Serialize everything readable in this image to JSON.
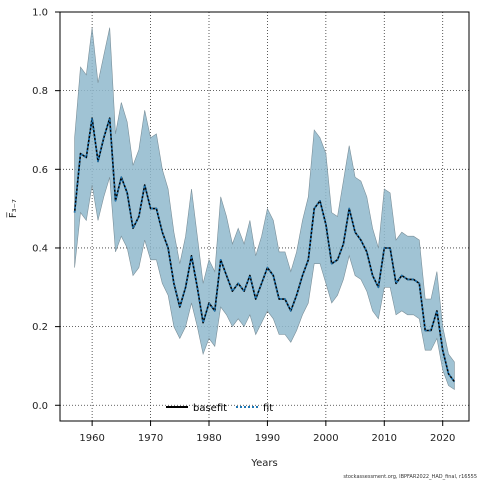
{
  "chart_data": {
    "type": "line",
    "xlabel": "Years",
    "ylabel": "F̅₃₋₇",
    "xlim": [
      1954.5,
      2024.5
    ],
    "ylim": [
      -0.04,
      1.0
    ],
    "xticks": [
      1960,
      1970,
      1980,
      1990,
      2000,
      2010,
      2020
    ],
    "yticks": [
      0.0,
      0.2,
      0.4,
      0.6,
      0.8,
      1.0
    ],
    "ytick_labels": [
      "0.0",
      "0.2",
      "0.4",
      "0.6",
      "0.8",
      "1.0"
    ],
    "grid": true,
    "legend_position": "bottom-center",
    "credit": "stockassessment.org, IBPFAR2022_HAD_final, r16555",
    "colors": {
      "band": "#8fb8cc",
      "band_edge": "#7a8f99",
      "basefit": "#000000",
      "fit": "#1f77b4"
    },
    "x": [
      1957,
      1958,
      1959,
      1960,
      1961,
      1962,
      1963,
      1964,
      1965,
      1966,
      1967,
      1968,
      1969,
      1970,
      1971,
      1972,
      1973,
      1974,
      1975,
      1976,
      1977,
      1978,
      1979,
      1980,
      1981,
      1982,
      1983,
      1984,
      1985,
      1986,
      1987,
      1988,
      1989,
      1990,
      1991,
      1992,
      1993,
      1994,
      1995,
      1996,
      1997,
      1998,
      1999,
      2000,
      2001,
      2002,
      2003,
      2004,
      2005,
      2006,
      2007,
      2008,
      2009,
      2010,
      2011,
      2012,
      2013,
      2014,
      2015,
      2016,
      2017,
      2018,
      2019,
      2020,
      2021,
      2022
    ],
    "series": [
      {
        "name": "basefit",
        "style": "solid",
        "values": [
          0.49,
          0.64,
          0.63,
          0.73,
          0.62,
          0.68,
          0.73,
          0.52,
          0.58,
          0.54,
          0.45,
          0.48,
          0.56,
          0.5,
          0.5,
          0.44,
          0.4,
          0.31,
          0.25,
          0.3,
          0.38,
          0.3,
          0.21,
          0.26,
          0.24,
          0.37,
          0.33,
          0.29,
          0.31,
          0.29,
          0.33,
          0.27,
          0.31,
          0.35,
          0.33,
          0.27,
          0.27,
          0.24,
          0.28,
          0.33,
          0.37,
          0.5,
          0.52,
          0.46,
          0.36,
          0.37,
          0.41,
          0.5,
          0.44,
          0.42,
          0.39,
          0.33,
          0.3,
          0.4,
          0.4,
          0.31,
          0.33,
          0.32,
          0.32,
          0.31,
          0.19,
          0.19,
          0.24,
          0.14,
          0.08,
          0.06
        ]
      },
      {
        "name": "fit",
        "style": "dotted",
        "values": [
          0.49,
          0.64,
          0.63,
          0.73,
          0.62,
          0.68,
          0.73,
          0.52,
          0.58,
          0.54,
          0.45,
          0.48,
          0.56,
          0.5,
          0.5,
          0.44,
          0.4,
          0.31,
          0.25,
          0.3,
          0.38,
          0.3,
          0.21,
          0.26,
          0.24,
          0.37,
          0.33,
          0.29,
          0.31,
          0.29,
          0.33,
          0.27,
          0.31,
          0.35,
          0.33,
          0.27,
          0.27,
          0.24,
          0.28,
          0.33,
          0.37,
          0.5,
          0.52,
          0.46,
          0.36,
          0.37,
          0.41,
          0.5,
          0.44,
          0.42,
          0.39,
          0.33,
          0.3,
          0.4,
          0.4,
          0.31,
          0.33,
          0.32,
          0.32,
          0.31,
          0.19,
          0.19,
          0.24,
          0.14,
          0.08,
          0.06
        ]
      }
    ],
    "band": {
      "name": "confidence interval",
      "lower": [
        0.35,
        0.49,
        0.47,
        0.56,
        0.47,
        0.53,
        0.58,
        0.39,
        0.43,
        0.4,
        0.33,
        0.35,
        0.42,
        0.37,
        0.37,
        0.31,
        0.28,
        0.2,
        0.17,
        0.2,
        0.26,
        0.2,
        0.13,
        0.17,
        0.15,
        0.25,
        0.23,
        0.2,
        0.22,
        0.2,
        0.23,
        0.18,
        0.21,
        0.24,
        0.22,
        0.18,
        0.18,
        0.16,
        0.19,
        0.23,
        0.26,
        0.36,
        0.36,
        0.31,
        0.26,
        0.28,
        0.32,
        0.38,
        0.33,
        0.32,
        0.29,
        0.24,
        0.22,
        0.3,
        0.3,
        0.23,
        0.24,
        0.23,
        0.23,
        0.22,
        0.14,
        0.14,
        0.17,
        0.09,
        0.05,
        0.04
      ],
      "upper": [
        0.68,
        0.86,
        0.84,
        0.96,
        0.82,
        0.89,
        0.96,
        0.69,
        0.77,
        0.72,
        0.61,
        0.65,
        0.75,
        0.68,
        0.69,
        0.6,
        0.55,
        0.44,
        0.36,
        0.43,
        0.55,
        0.43,
        0.31,
        0.37,
        0.34,
        0.53,
        0.48,
        0.41,
        0.45,
        0.41,
        0.47,
        0.38,
        0.43,
        0.5,
        0.47,
        0.39,
        0.39,
        0.34,
        0.39,
        0.47,
        0.53,
        0.7,
        0.68,
        0.64,
        0.49,
        0.48,
        0.57,
        0.66,
        0.58,
        0.57,
        0.53,
        0.45,
        0.4,
        0.55,
        0.54,
        0.42,
        0.44,
        0.43,
        0.43,
        0.42,
        0.27,
        0.27,
        0.34,
        0.2,
        0.13,
        0.11
      ]
    }
  }
}
